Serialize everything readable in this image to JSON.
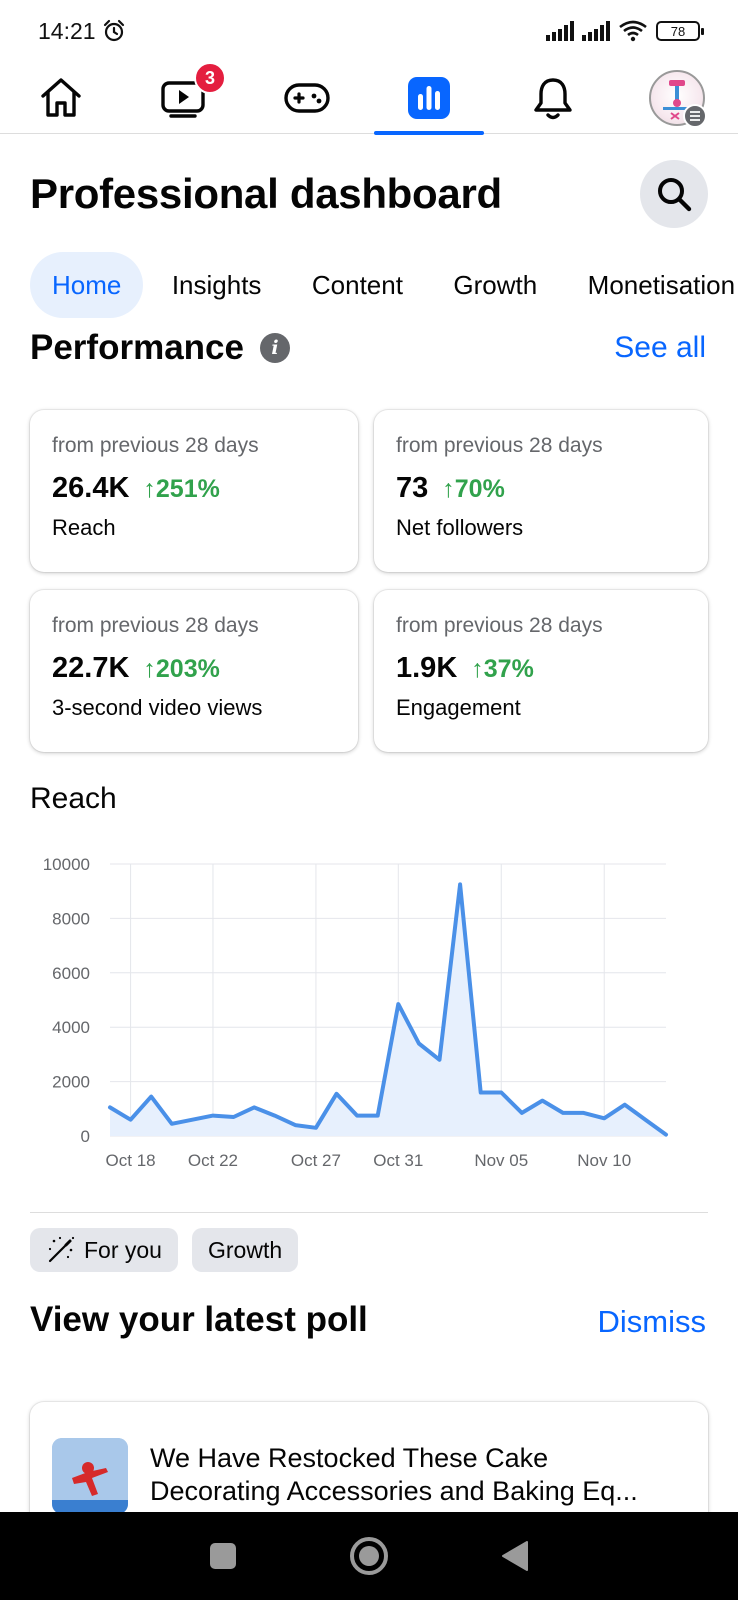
{
  "status_bar": {
    "time": "14:21",
    "battery": "78",
    "icons": [
      "alarm-icon",
      "signal-icon",
      "signal-icon",
      "wifi-icon",
      "battery-icon"
    ]
  },
  "top_nav": {
    "items": [
      {
        "name": "home",
        "icon": "home-icon"
      },
      {
        "name": "video",
        "icon": "video-icon",
        "badge": "3"
      },
      {
        "name": "gaming",
        "icon": "gamepad-icon"
      },
      {
        "name": "dashboard",
        "icon": "bar-chart-icon",
        "active": true
      },
      {
        "name": "notifications",
        "icon": "bell-icon"
      },
      {
        "name": "profile",
        "icon": "avatar-icon"
      }
    ],
    "accent": "#0866ff"
  },
  "header": {
    "title": "Professional dashboard"
  },
  "tabs": [
    {
      "label": "Home",
      "active": true
    },
    {
      "label": "Insights"
    },
    {
      "label": "Content"
    },
    {
      "label": "Growth"
    },
    {
      "label": "Monetisation"
    }
  ],
  "performance": {
    "title": "Performance",
    "see_all": "See all",
    "cards": [
      {
        "period": "from previous 28 days",
        "value": "26.4K",
        "delta": "↑251%",
        "label": "Reach"
      },
      {
        "period": "from previous 28 days",
        "value": "73",
        "delta": "↑70%",
        "label": "Net followers"
      },
      {
        "period": "from previous 28 days",
        "value": "22.7K",
        "delta": "↑203%",
        "label": "3-second video views"
      },
      {
        "period": "from previous 28 days",
        "value": "1.9K",
        "delta": "↑37%",
        "label": "Engagement"
      }
    ],
    "positive_color": "#31a24c"
  },
  "reach_section": {
    "title": "Reach"
  },
  "chart_data": {
    "type": "area",
    "title": "Reach",
    "x": [
      "Oct 17",
      "Oct 18",
      "Oct 19",
      "Oct 20",
      "Oct 21",
      "Oct 22",
      "Oct 23",
      "Oct 24",
      "Oct 25",
      "Oct 26",
      "Oct 27",
      "Oct 28",
      "Oct 29",
      "Oct 30",
      "Oct 31",
      "Nov 01",
      "Nov 02",
      "Nov 03",
      "Nov 04",
      "Nov 05",
      "Nov 06",
      "Nov 07",
      "Nov 08",
      "Nov 09",
      "Nov 10",
      "Nov 11",
      "Nov 12",
      "Nov 13"
    ],
    "series": [
      {
        "values": [
          1050,
          600,
          1450,
          450,
          600,
          750,
          700,
          1050,
          750,
          400,
          300,
          1550,
          750,
          750,
          4850,
          3400,
          2800,
          9250,
          1600,
          1600,
          850,
          1300,
          850,
          850,
          650,
          1150,
          600,
          50
        ]
      }
    ],
    "x_tick_labels": [
      "Oct 18",
      "Oct 22",
      "Oct 27",
      "Oct 31",
      "Nov 05",
      "Nov 10"
    ],
    "y_tick_labels": [
      "0",
      "2000",
      "4000",
      "6000",
      "8000",
      "10000"
    ],
    "ylim": [
      0,
      10000
    ],
    "grid": true,
    "line_color": "#4a90e8",
    "fill_color": "#e7f0fd"
  },
  "chips": [
    {
      "label": "For you",
      "icon": "magic-wand-icon"
    },
    {
      "label": "Growth"
    }
  ],
  "poll": {
    "title": "View your latest poll",
    "dismiss": "Dismiss",
    "post_title": "We Have Restocked These Cake Decorating Accessories and Baking Eq..."
  },
  "system_nav": {
    "buttons": [
      "recents-icon",
      "home-circle-icon",
      "back-icon"
    ]
  }
}
